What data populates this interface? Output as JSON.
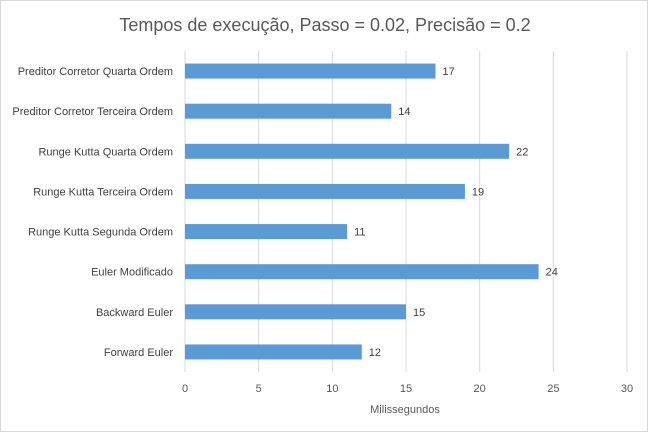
{
  "chart_data": {
    "type": "bar",
    "orientation": "horizontal",
    "title": "Tempos de execução, Passo = 0.02,  Precisão = 0.2",
    "xlabel": "Milissegundos",
    "ylabel": "",
    "categories": [
      "Preditor Corretor Quarta Ordem",
      "Preditor Corretor Terceira Ordem",
      "Runge Kutta Quarta Ordem",
      "Runge Kutta Terceira Ordem",
      "Runge Kutta Segunda Ordem",
      "Euler Modificado",
      "Backward Euler",
      "Forward Euler"
    ],
    "values": [
      17,
      14,
      22,
      19,
      11,
      24,
      15,
      12
    ],
    "xlim": [
      0,
      30
    ],
    "xticks": [
      0,
      5,
      10,
      15,
      20,
      25,
      30
    ],
    "grid": true,
    "legend": "none",
    "bar_color": "#5b9bd5",
    "data_labels": true
  }
}
